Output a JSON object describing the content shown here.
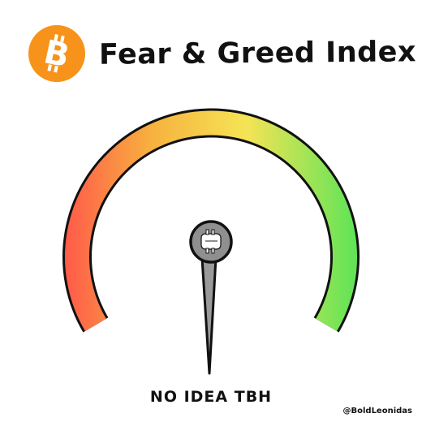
{
  "title": "Fear & Greed Index",
  "logo_icon": "bitcoin-logo",
  "brand_color": "#f7931a",
  "gauge": {
    "gradient_colors": [
      "#ff5a4a",
      "#f7b23f",
      "#f5e455",
      "#5ee456"
    ]
  },
  "needle_icon": "bitcoin-icon",
  "reading": "NO IDEA TBH",
  "credit": "@BoldLeonidas"
}
